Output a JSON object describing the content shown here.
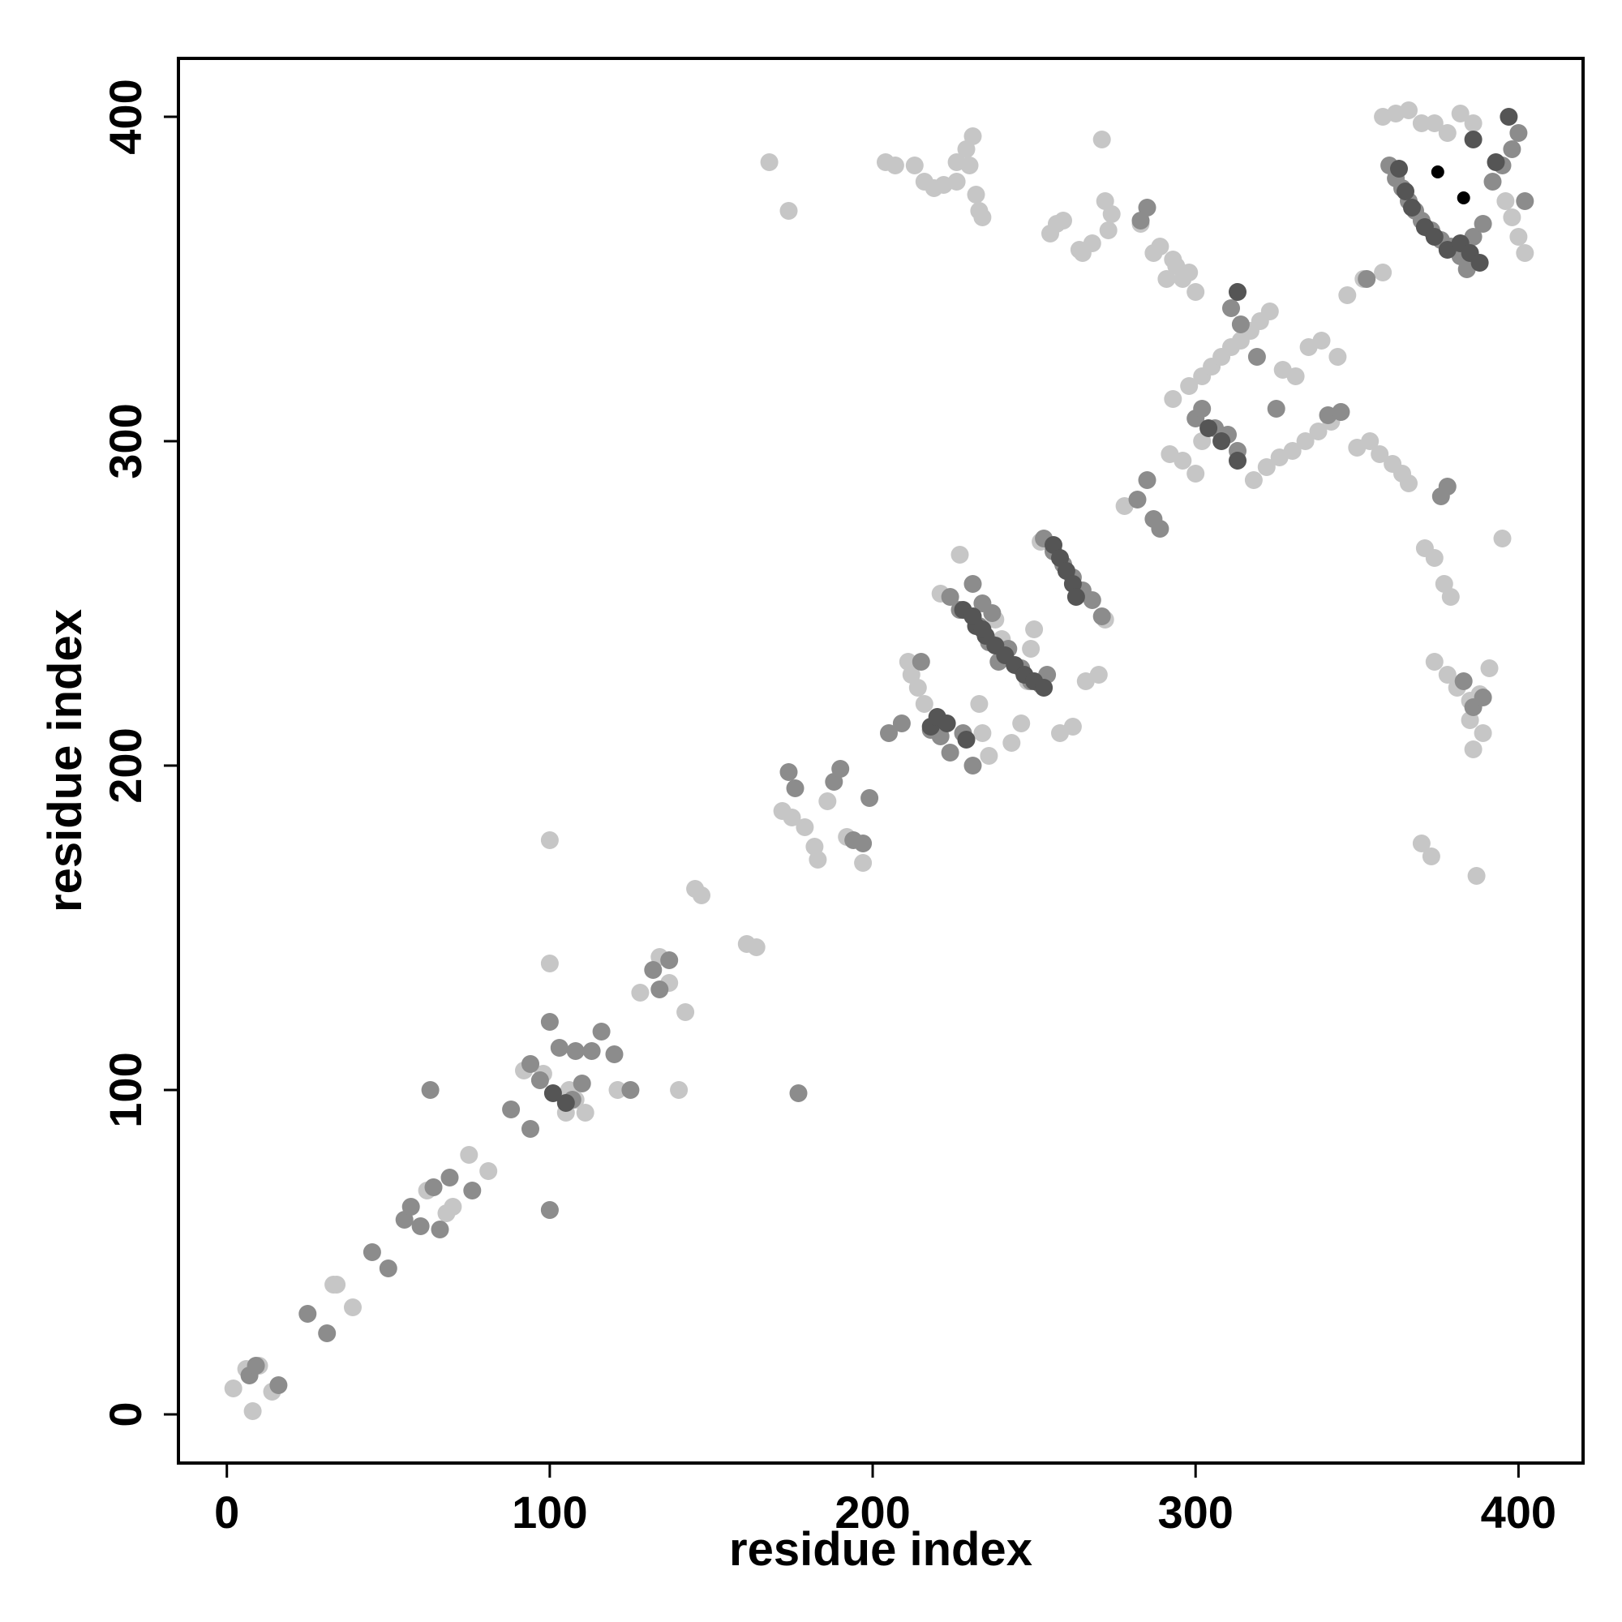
{
  "chart_data": {
    "type": "scatter",
    "title": "",
    "xlabel": "residue index",
    "ylabel": "residue index",
    "xlim": [
      -15,
      420
    ],
    "ylim": [
      -15,
      418
    ],
    "xticks": [
      0,
      100,
      200,
      300,
      400
    ],
    "yticks": [
      0,
      100,
      200,
      300,
      400
    ],
    "grid": false,
    "legend": "none",
    "colors": {
      "light": "#c6c6c6",
      "mid": "#8c8c8c",
      "dark": "#555555",
      "black": "#000000"
    },
    "series": [
      {
        "shade": "light",
        "points": [
          [
            2,
            8
          ],
          [
            6,
            14
          ],
          [
            8,
            1
          ],
          [
            10,
            15
          ],
          [
            14,
            7
          ],
          [
            33,
            40
          ],
          [
            34,
            40
          ],
          [
            39,
            33
          ],
          [
            62,
            69
          ],
          [
            64,
            70
          ],
          [
            68,
            62
          ],
          [
            70,
            64
          ],
          [
            75,
            80
          ],
          [
            81,
            75
          ],
          [
            92,
            106
          ],
          [
            94,
            108
          ],
          [
            98,
            105
          ],
          [
            100,
            139
          ],
          [
            100,
            177
          ],
          [
            100,
            63
          ],
          [
            105,
            93
          ],
          [
            106,
            100
          ],
          [
            108,
            97
          ],
          [
            111,
            93
          ],
          [
            121,
            100
          ],
          [
            128,
            130
          ],
          [
            134,
            141
          ],
          [
            137,
            133
          ],
          [
            140,
            100
          ],
          [
            142,
            124
          ],
          [
            145,
            162
          ],
          [
            147,
            160
          ],
          [
            161,
            145
          ],
          [
            164,
            144
          ],
          [
            168,
            386
          ],
          [
            174,
            371
          ],
          [
            172,
            186
          ],
          [
            175,
            184
          ],
          [
            179,
            181
          ],
          [
            182,
            175
          ],
          [
            183,
            171
          ],
          [
            186,
            189
          ],
          [
            192,
            178
          ],
          [
            197,
            170
          ],
          [
            204,
            386
          ],
          [
            207,
            385
          ],
          [
            211,
            232
          ],
          [
            212,
            228
          ],
          [
            214,
            224
          ],
          [
            216,
            219
          ],
          [
            213,
            385
          ],
          [
            216,
            380
          ],
          [
            219,
            378
          ],
          [
            221,
            253
          ],
          [
            222,
            379
          ],
          [
            226,
            386
          ],
          [
            226,
            380
          ],
          [
            227,
            265
          ],
          [
            229,
            390
          ],
          [
            230,
            385
          ],
          [
            231,
            394
          ],
          [
            232,
            376
          ],
          [
            233,
            371
          ],
          [
            234,
            369
          ],
          [
            233,
            219
          ],
          [
            234,
            210
          ],
          [
            236,
            203
          ],
          [
            238,
            245
          ],
          [
            240,
            239
          ],
          [
            243,
            207
          ],
          [
            246,
            213
          ],
          [
            248,
            226
          ],
          [
            249,
            236
          ],
          [
            250,
            242
          ],
          [
            252,
            269
          ],
          [
            255,
            364
          ],
          [
            257,
            367
          ],
          [
            259,
            368
          ],
          [
            264,
            359
          ],
          [
            265,
            358
          ],
          [
            268,
            361
          ],
          [
            271,
            393
          ],
          [
            272,
            374
          ],
          [
            273,
            365
          ],
          [
            274,
            370
          ],
          [
            272,
            245
          ],
          [
            270,
            228
          ],
          [
            266,
            226
          ],
          [
            262,
            212
          ],
          [
            258,
            210
          ],
          [
            278,
            280
          ],
          [
            283,
            367
          ],
          [
            287,
            358
          ],
          [
            289,
            360
          ],
          [
            291,
            350
          ],
          [
            293,
            356
          ],
          [
            294,
            354
          ],
          [
            296,
            350
          ],
          [
            298,
            352
          ],
          [
            300,
            346
          ],
          [
            292,
            296
          ],
          [
            296,
            294
          ],
          [
            300,
            290
          ],
          [
            302,
            300
          ],
          [
            293,
            313
          ],
          [
            298,
            317
          ],
          [
            302,
            320
          ],
          [
            305,
            323
          ],
          [
            308,
            326
          ],
          [
            311,
            329
          ],
          [
            314,
            331
          ],
          [
            317,
            334
          ],
          [
            320,
            337
          ],
          [
            323,
            340
          ],
          [
            327,
            322
          ],
          [
            331,
            320
          ],
          [
            335,
            329
          ],
          [
            339,
            331
          ],
          [
            344,
            326
          ],
          [
            318,
            288
          ],
          [
            322,
            292
          ],
          [
            326,
            295
          ],
          [
            330,
            297
          ],
          [
            334,
            300
          ],
          [
            338,
            303
          ],
          [
            342,
            306
          ],
          [
            345,
            309
          ],
          [
            350,
            298
          ],
          [
            354,
            300
          ],
          [
            357,
            296
          ],
          [
            361,
            293
          ],
          [
            364,
            290
          ],
          [
            366,
            287
          ],
          [
            358,
            400
          ],
          [
            362,
            401
          ],
          [
            366,
            402
          ],
          [
            370,
            398
          ],
          [
            374,
            398
          ],
          [
            378,
            395
          ],
          [
            382,
            401
          ],
          [
            386,
            398
          ],
          [
            371,
            267
          ],
          [
            374,
            264
          ],
          [
            377,
            256
          ],
          [
            379,
            252
          ],
          [
            374,
            232
          ],
          [
            378,
            228
          ],
          [
            381,
            224
          ],
          [
            385,
            220
          ],
          [
            388,
            222
          ],
          [
            391,
            230
          ],
          [
            395,
            270
          ],
          [
            385,
            214
          ],
          [
            389,
            210
          ],
          [
            386,
            205
          ],
          [
            387,
            166
          ],
          [
            370,
            176
          ],
          [
            373,
            172
          ],
          [
            396,
            374
          ],
          [
            398,
            369
          ],
          [
            400,
            363
          ],
          [
            402,
            358
          ],
          [
            358,
            352
          ],
          [
            352,
            350
          ],
          [
            347,
            345
          ]
        ]
      },
      {
        "shade": "mid",
        "points": [
          [
            7,
            12
          ],
          [
            9,
            15
          ],
          [
            16,
            9
          ],
          [
            25,
            31
          ],
          [
            31,
            25
          ],
          [
            45,
            50
          ],
          [
            50,
            45
          ],
          [
            55,
            60
          ],
          [
            57,
            64
          ],
          [
            60,
            58
          ],
          [
            63,
            100
          ],
          [
            64,
            70
          ],
          [
            66,
            57
          ],
          [
            69,
            73
          ],
          [
            76,
            69
          ],
          [
            88,
            94
          ],
          [
            94,
            88
          ],
          [
            94,
            108
          ],
          [
            97,
            103
          ],
          [
            100,
            121
          ],
          [
            100,
            63
          ],
          [
            103,
            113
          ],
          [
            107,
            97
          ],
          [
            108,
            112
          ],
          [
            110,
            102
          ],
          [
            113,
            112
          ],
          [
            116,
            118
          ],
          [
            120,
            111
          ],
          [
            125,
            100
          ],
          [
            132,
            137
          ],
          [
            134,
            131
          ],
          [
            137,
            140
          ],
          [
            174,
            198
          ],
          [
            176,
            193
          ],
          [
            177,
            99
          ],
          [
            188,
            195
          ],
          [
            190,
            199
          ],
          [
            194,
            177
          ],
          [
            197,
            176
          ],
          [
            199,
            190
          ],
          [
            205,
            210
          ],
          [
            209,
            213
          ],
          [
            215,
            232
          ],
          [
            218,
            211
          ],
          [
            221,
            209
          ],
          [
            224,
            204
          ],
          [
            228,
            210
          ],
          [
            231,
            200
          ],
          [
            233,
            243
          ],
          [
            236,
            238
          ],
          [
            239,
            232
          ],
          [
            242,
            236
          ],
          [
            246,
            230
          ],
          [
            249,
            226
          ],
          [
            252,
            225
          ],
          [
            254,
            228
          ],
          [
            231,
            256
          ],
          [
            234,
            250
          ],
          [
            237,
            247
          ],
          [
            224,
            252
          ],
          [
            227,
            248
          ],
          [
            253,
            270
          ],
          [
            256,
            266
          ],
          [
            259,
            262
          ],
          [
            262,
            258
          ],
          [
            265,
            254
          ],
          [
            268,
            251
          ],
          [
            271,
            246
          ],
          [
            283,
            368
          ],
          [
            285,
            372
          ],
          [
            285,
            288
          ],
          [
            282,
            282
          ],
          [
            287,
            276
          ],
          [
            289,
            273
          ],
          [
            300,
            307
          ],
          [
            302,
            310
          ],
          [
            306,
            304
          ],
          [
            310,
            302
          ],
          [
            313,
            297
          ],
          [
            311,
            341
          ],
          [
            314,
            336
          ],
          [
            319,
            326
          ],
          [
            325,
            310
          ],
          [
            341,
            308
          ],
          [
            345,
            309
          ],
          [
            353,
            350
          ],
          [
            360,
            385
          ],
          [
            362,
            381
          ],
          [
            364,
            378
          ],
          [
            366,
            374
          ],
          [
            368,
            371
          ],
          [
            370,
            368
          ],
          [
            373,
            365
          ],
          [
            376,
            362
          ],
          [
            379,
            360
          ],
          [
            382,
            357
          ],
          [
            384,
            353
          ],
          [
            386,
            363
          ],
          [
            389,
            367
          ],
          [
            392,
            380
          ],
          [
            395,
            385
          ],
          [
            398,
            390
          ],
          [
            400,
            395
          ],
          [
            402,
            374
          ],
          [
            376,
            283
          ],
          [
            378,
            286
          ],
          [
            383,
            226
          ],
          [
            386,
            218
          ],
          [
            389,
            221
          ]
        ]
      },
      {
        "shade": "dark",
        "points": [
          [
            101,
            99
          ],
          [
            105,
            96
          ],
          [
            218,
            212
          ],
          [
            220,
            215
          ],
          [
            223,
            213
          ],
          [
            229,
            208
          ],
          [
            232,
            243
          ],
          [
            235,
            240
          ],
          [
            238,
            237
          ],
          [
            241,
            234
          ],
          [
            244,
            231
          ],
          [
            247,
            228
          ],
          [
            250,
            226
          ],
          [
            253,
            224
          ],
          [
            256,
            268
          ],
          [
            258,
            264
          ],
          [
            260,
            260
          ],
          [
            262,
            256
          ],
          [
            263,
            252
          ],
          [
            228,
            248
          ],
          [
            231,
            246
          ],
          [
            234,
            242
          ],
          [
            304,
            304
          ],
          [
            308,
            300
          ],
          [
            313,
            294
          ],
          [
            313,
            346
          ],
          [
            363,
            384
          ],
          [
            365,
            377
          ],
          [
            367,
            372
          ],
          [
            371,
            366
          ],
          [
            374,
            363
          ],
          [
            378,
            359
          ],
          [
            382,
            361
          ],
          [
            385,
            358
          ],
          [
            388,
            355
          ],
          [
            386,
            393
          ],
          [
            393,
            386
          ],
          [
            397,
            400
          ]
        ]
      },
      {
        "shade": "black",
        "points": [
          [
            375,
            383
          ],
          [
            383,
            375
          ]
        ]
      }
    ]
  }
}
